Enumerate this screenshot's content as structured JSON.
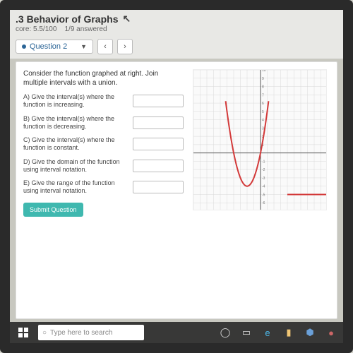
{
  "header": {
    "title": ".3 Behavior of Graphs",
    "score_label": "core: 5.5/100",
    "progress_label": "1/9 answered"
  },
  "question_nav": {
    "current_label": "Question 2",
    "prev_glyph": "‹",
    "next_glyph": "›"
  },
  "prompt": {
    "intro": "Consider the function graphed at right. Join multiple intervals with a union.",
    "items": [
      {
        "label": "A) Give the interval(s) where the function is increasing."
      },
      {
        "label": "B) Give the interval(s) where the function is decreasing."
      },
      {
        "label": "C) Give the interval(s) where the function is constant."
      },
      {
        "label": "D) Give the domain of the function using interval notation."
      },
      {
        "label": "E) Give the range of the function using interval notation."
      }
    ],
    "submit_label": "Submit Question"
  },
  "graph": {
    "type": "line",
    "xlim": [
      -10,
      10
    ],
    "ylim": [
      -7,
      10
    ],
    "xtick_step": 1,
    "ytick_step": 1,
    "background_color": "#fafafa",
    "grid_color": "#d9d9d9",
    "axis_color": "#555555",
    "curve_color": "#d33a3a",
    "curve_width": 2,
    "pieces": [
      {
        "kind": "parabola",
        "vertex": [
          -2,
          -4
        ],
        "a": 1,
        "x_from": -5.2,
        "x_to": 1.2
      },
      {
        "kind": "segment",
        "from": [
          4,
          -5
        ],
        "to": [
          10,
          -5
        ]
      }
    ],
    "ytick_labels": [
      10,
      9,
      8,
      7,
      6,
      5,
      4,
      3,
      2,
      1,
      -1,
      -2,
      -3,
      -4,
      -5,
      -6
    ],
    "label_fontsize": 5,
    "label_color": "#777777"
  },
  "taskbar": {
    "search_placeholder": "Type here to search"
  },
  "colors": {
    "accent": "#3fb8af",
    "link": "#2a6496"
  }
}
